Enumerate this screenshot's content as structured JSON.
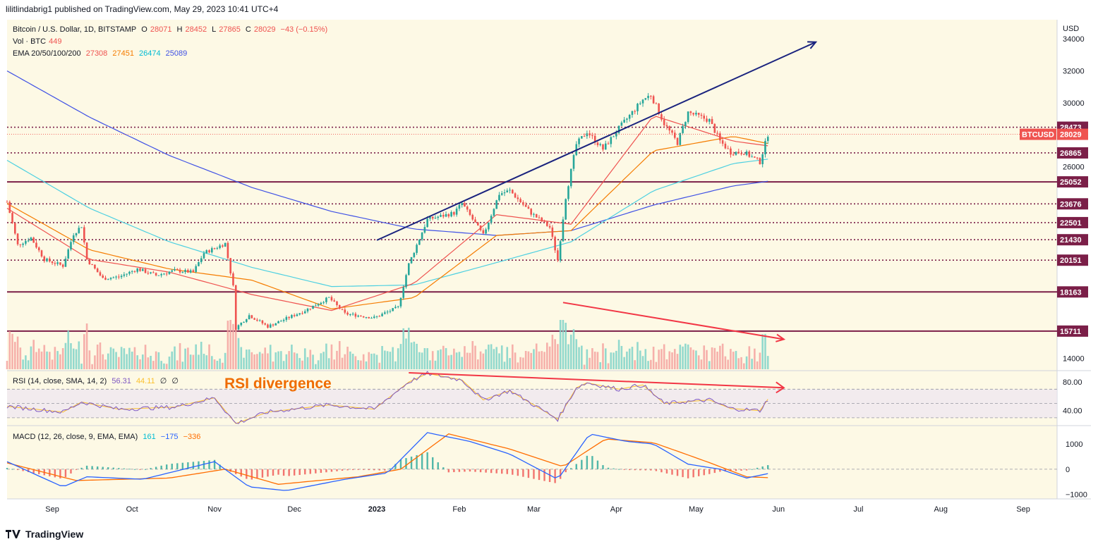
{
  "header": {
    "published": "lilitlindabrig1 published on TradingView.com, May 29, 2023 10:41 UTC+4"
  },
  "legend": {
    "symbol": "Bitcoin / U.S. Dollar, 1D, BITSTAMP",
    "o_label": "O",
    "o": "28071",
    "h_label": "H",
    "h": "28452",
    "l_label": "L",
    "l": "27865",
    "c_label": "C",
    "c": "28029",
    "chg": "−43 (−0.15%)",
    "vol_label": "Vol · BTC",
    "vol": "449",
    "ema_label": "EMA 20/50/100/200",
    "ema20": "27308",
    "ema50": "27451",
    "ema100": "26474",
    "ema200": "25089"
  },
  "rsi_legend": {
    "label": "RSI (14, close, SMA, 14, 2)",
    "rsi": "56.31",
    "sma": "44.11",
    "a": "∅",
    "b": "∅"
  },
  "macd_legend": {
    "label": "MACD (12, 26, close, 9, EMA, EMA)",
    "hist": "161",
    "macd": "−175",
    "signal": "−336"
  },
  "annotation": {
    "rsi_divergence": "RSI divergence"
  },
  "footer": {
    "brand": "TradingView"
  },
  "colors": {
    "up": "#26a69a",
    "down": "#ef5350",
    "ema20": "#ef5350",
    "ema50": "#f57c00",
    "ema100": "#4dd0e1",
    "ema200": "#3f51e5",
    "bg": "#fdf9e5",
    "level_dark": "#7b1f48",
    "level_dotted": "#7b1f48",
    "trend_blue": "#1a237e",
    "trend_red": "#f23645"
  },
  "chart_data": {
    "type": "line",
    "series_type": "candlestick",
    "currency": "USD",
    "x_labels": [
      "Sep",
      "Oct",
      "Nov",
      "Dec",
      "2023",
      "Feb",
      "Mar",
      "Apr",
      "May",
      "Jun",
      "Jul",
      "Aug",
      "Sep"
    ],
    "price_axis_ticks": [
      34000,
      32000,
      30000,
      28000,
      26000,
      24000,
      22000,
      20000,
      18000,
      16000,
      14000
    ],
    "price_axis_labels": [
      "34000",
      "32000",
      "30000",
      "26000",
      "14000"
    ],
    "ylim": [
      13500,
      35200
    ],
    "price_closes": [
      [
        "2022-08-15",
        23800
      ],
      [
        "2022-08-19",
        21100
      ],
      [
        "2022-08-24",
        21550
      ],
      [
        "2022-08-29",
        20200
      ],
      [
        "2022-09-05",
        19800
      ],
      [
        "2022-09-09",
        21800
      ],
      [
        "2022-09-12",
        22300
      ],
      [
        "2022-09-14",
        20200
      ],
      [
        "2022-09-20",
        19000
      ],
      [
        "2022-09-26",
        19100
      ],
      [
        "2022-10-03",
        19600
      ],
      [
        "2022-10-10",
        19200
      ],
      [
        "2022-10-17",
        19500
      ],
      [
        "2022-10-24",
        19400
      ],
      [
        "2022-10-28",
        20600
      ],
      [
        "2022-11-05",
        21200
      ],
      [
        "2022-11-08",
        18500
      ],
      [
        "2022-11-09",
        15900
      ],
      [
        "2022-11-14",
        16700
      ],
      [
        "2022-11-21",
        16000
      ],
      [
        "2022-11-28",
        16500
      ],
      [
        "2022-12-05",
        17000
      ],
      [
        "2022-12-14",
        17800
      ],
      [
        "2022-12-20",
        16800
      ],
      [
        "2022-12-31",
        16550
      ],
      [
        "2023-01-09",
        17200
      ],
      [
        "2023-01-13",
        19900
      ],
      [
        "2023-01-20",
        22700
      ],
      [
        "2023-01-30",
        23100
      ],
      [
        "2023-02-02",
        23700
      ],
      [
        "2023-02-10",
        21700
      ],
      [
        "2023-02-16",
        24300
      ],
      [
        "2023-02-20",
        24500
      ],
      [
        "2023-02-28",
        23100
      ],
      [
        "2023-03-07",
        22200
      ],
      [
        "2023-03-10",
        20150
      ],
      [
        "2023-03-13",
        24100
      ],
      [
        "2023-03-17",
        27400
      ],
      [
        "2023-03-21",
        28200
      ],
      [
        "2023-03-27",
        27100
      ],
      [
        "2023-04-02",
        28400
      ],
      [
        "2023-04-11",
        30200
      ],
      [
        "2023-04-14",
        30500
      ],
      [
        "2023-04-19",
        28700
      ],
      [
        "2023-04-24",
        27500
      ],
      [
        "2023-04-28",
        29400
      ],
      [
        "2023-05-06",
        28900
      ],
      [
        "2023-05-10",
        27600
      ],
      [
        "2023-05-14",
        26900
      ],
      [
        "2023-05-19",
        26900
      ],
      [
        "2023-05-25",
        26300
      ],
      [
        "2023-05-28",
        28029
      ]
    ],
    "ema200_points": [
      [
        "2022-08-15",
        32000
      ],
      [
        "2022-09-15",
        29100
      ],
      [
        "2022-10-15",
        26700
      ],
      [
        "2022-11-15",
        24700
      ],
      [
        "2022-12-15",
        23200
      ],
      [
        "2023-01-15",
        22100
      ],
      [
        "2023-02-15",
        21700
      ],
      [
        "2023-03-15",
        22000
      ],
      [
        "2023-04-15",
        23600
      ],
      [
        "2023-05-15",
        24800
      ],
      [
        "2023-05-28",
        25089
      ]
    ],
    "ema100_points": [
      [
        "2022-08-15",
        26400
      ],
      [
        "2022-09-15",
        23400
      ],
      [
        "2022-10-15",
        21300
      ],
      [
        "2022-11-15",
        19700
      ],
      [
        "2022-12-15",
        18500
      ],
      [
        "2023-01-15",
        18600
      ],
      [
        "2023-02-15",
        20000
      ],
      [
        "2023-03-15",
        21300
      ],
      [
        "2023-04-15",
        24500
      ],
      [
        "2023-05-15",
        26200
      ],
      [
        "2023-05-28",
        26474
      ]
    ],
    "ema50_points": [
      [
        "2022-08-15",
        23700
      ],
      [
        "2022-09-15",
        20800
      ],
      [
        "2022-10-15",
        19600
      ],
      [
        "2022-11-15",
        18900
      ],
      [
        "2022-12-15",
        17100
      ],
      [
        "2023-01-15",
        17800
      ],
      [
        "2023-02-15",
        21700
      ],
      [
        "2023-03-15",
        22000
      ],
      [
        "2023-04-15",
        27000
      ],
      [
        "2023-05-15",
        27900
      ],
      [
        "2023-05-28",
        27451
      ]
    ],
    "ema20_points": [
      [
        "2022-08-15",
        23400
      ],
      [
        "2022-09-15",
        20200
      ],
      [
        "2022-10-15",
        19400
      ],
      [
        "2022-11-15",
        18000
      ],
      [
        "2022-12-15",
        17000
      ],
      [
        "2023-01-15",
        18700
      ],
      [
        "2023-02-15",
        23000
      ],
      [
        "2023-03-15",
        22400
      ],
      [
        "2023-04-15",
        29200
      ],
      [
        "2023-05-15",
        27600
      ],
      [
        "2023-05-28",
        27308
      ]
    ],
    "price_levels": [
      {
        "value": 28473,
        "label": "28473",
        "style": "dotted"
      },
      {
        "value": 26865,
        "label": "26865",
        "style": "dotted"
      },
      {
        "value": 25052,
        "label": "25052",
        "style": "solid"
      },
      {
        "value": 23676,
        "label": "23676",
        "style": "dotted"
      },
      {
        "value": 22501,
        "label": "22501",
        "style": "dotted"
      },
      {
        "value": 21430,
        "label": "21430",
        "style": "dotted"
      },
      {
        "value": 20151,
        "label": "20151",
        "style": "dotted"
      },
      {
        "value": 18163,
        "label": "18163",
        "style": "solid"
      },
      {
        "value": 15711,
        "label": "15711",
        "style": "solid"
      }
    ],
    "last_price": {
      "label": "BTCUSD",
      "value": "28029"
    },
    "trendlines": [
      {
        "name": "price-rising-trend",
        "color": "trend_blue",
        "from": [
          "2023-01-01",
          21400
        ],
        "to": [
          "2023-06-15",
          33800
        ]
      },
      {
        "name": "volume-falling-trend",
        "color": "trend_red",
        "from": [
          "2023-03-12",
          17500
        ],
        "to": [
          "2023-06-03",
          15200
        ]
      }
    ],
    "rsi": {
      "ticks": [
        "80.00",
        "40.00"
      ],
      "ylim": [
        20,
        95
      ],
      "bands": [
        70,
        50,
        30
      ],
      "rsi_points": [
        [
          "2022-08-15",
          46
        ],
        [
          "2022-09-05",
          38
        ],
        [
          "2022-09-12",
          52
        ],
        [
          "2022-09-26",
          42
        ],
        [
          "2022-10-17",
          45
        ],
        [
          "2022-11-01",
          58
        ],
        [
          "2022-11-09",
          22
        ],
        [
          "2022-11-21",
          38
        ],
        [
          "2022-12-14",
          48
        ],
        [
          "2022-12-31",
          42
        ],
        [
          "2023-01-13",
          80
        ],
        [
          "2023-01-20",
          92
        ],
        [
          "2023-02-02",
          83
        ],
        [
          "2023-02-10",
          55
        ],
        [
          "2023-02-20",
          68
        ],
        [
          "2023-03-10",
          28
        ],
        [
          "2023-03-17",
          72
        ],
        [
          "2023-03-21",
          79
        ],
        [
          "2023-04-02",
          70
        ],
        [
          "2023-04-11",
          76
        ],
        [
          "2023-04-19",
          50
        ],
        [
          "2023-05-06",
          55
        ],
        [
          "2023-05-14",
          43
        ],
        [
          "2023-05-25",
          40
        ],
        [
          "2023-05-28",
          56
        ]
      ],
      "divergence_line": {
        "from": [
          "2023-01-13",
          93
        ],
        "to": [
          "2023-06-03",
          72
        ]
      }
    },
    "macd": {
      "ticks": [
        "1000",
        "0",
        "−1000"
      ],
      "ylim": [
        -1150,
        1700
      ],
      "macd_points": [
        [
          "2022-08-15",
          300
        ],
        [
          "2022-09-05",
          -700
        ],
        [
          "2022-09-14",
          -300
        ],
        [
          "2022-10-05",
          -400
        ],
        [
          "2022-11-01",
          300
        ],
        [
          "2022-11-14",
          -700
        ],
        [
          "2022-11-28",
          -850
        ],
        [
          "2022-12-20",
          -400
        ],
        [
          "2023-01-05",
          -150
        ],
        [
          "2023-01-20",
          1450
        ],
        [
          "2023-02-05",
          1100
        ],
        [
          "2023-02-20",
          600
        ],
        [
          "2023-03-10",
          -400
        ],
        [
          "2023-03-22",
          1400
        ],
        [
          "2023-04-05",
          1100
        ],
        [
          "2023-04-15",
          1000
        ],
        [
          "2023-04-28",
          200
        ],
        [
          "2023-05-10",
          0
        ],
        [
          "2023-05-20",
          -350
        ],
        [
          "2023-05-28",
          -175
        ]
      ],
      "signal_points": [
        [
          "2022-08-15",
          250
        ],
        [
          "2022-09-10",
          -450
        ],
        [
          "2022-10-15",
          -350
        ],
        [
          "2022-11-05",
          0
        ],
        [
          "2022-11-25",
          -600
        ],
        [
          "2022-12-25",
          -300
        ],
        [
          "2023-01-10",
          0
        ],
        [
          "2023-01-28",
          1400
        ],
        [
          "2023-02-20",
          800
        ],
        [
          "2023-03-12",
          100
        ],
        [
          "2023-03-28",
          1200
        ],
        [
          "2023-04-15",
          1050
        ],
        [
          "2023-05-05",
          300
        ],
        [
          "2023-05-20",
          -300
        ],
        [
          "2023-05-28",
          -336
        ]
      ]
    }
  }
}
